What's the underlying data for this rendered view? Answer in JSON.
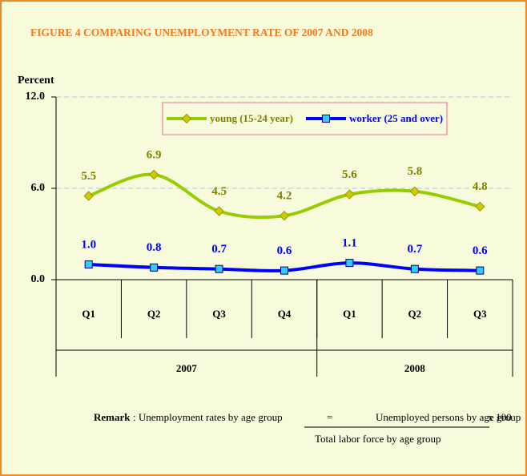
{
  "chart_data": {
    "type": "line",
    "title": "FIGURE 4  COMPARING UNEMPLOYMENT RATE OF 2007 AND 2008",
    "y_label": "Percent",
    "groups": [
      {
        "name": "2007",
        "categories": [
          "Q1",
          "Q2",
          "Q3",
          "Q4"
        ]
      },
      {
        "name": "2008",
        "categories": [
          "Q1",
          "Q2",
          "Q3"
        ]
      }
    ],
    "series": [
      {
        "name": "young (15-24 year)",
        "color": "#99cc00",
        "marker_color": "#cccc00",
        "label_color": "#808000",
        "marker": "diamond",
        "values": [
          5.5,
          6.9,
          4.5,
          4.2,
          5.6,
          5.8,
          4.8
        ],
        "value_labels": [
          "5.5",
          "6.9",
          "4.5",
          "4.2",
          "5.6",
          "5.8",
          "4.8"
        ]
      },
      {
        "name": "worker (25 and over)",
        "color": "#0000ff",
        "marker_color": "#33ccff",
        "label_color": "#0000ff",
        "marker": "square",
        "values": [
          1.0,
          0.8,
          0.7,
          0.6,
          1.1,
          0.7,
          0.6
        ],
        "value_labels": [
          "1.0",
          "0.8",
          "0.7",
          "0.6",
          "1.1",
          "0.7",
          "0.6"
        ]
      }
    ],
    "ylim": [
      0,
      12
    ],
    "yticks": [
      {
        "value": 0,
        "label": "0.0"
      },
      {
        "value": 6,
        "label": "6.0"
      },
      {
        "value": 12,
        "label": "12.0"
      }
    ],
    "grid": true,
    "legend": "top",
    "remark": {
      "label": "Remark",
      "text": ": Unemployment rates by age group",
      "equals": "=",
      "numerator": "Unemployed persons by age group",
      "multiplier": "x   100",
      "denominator": "Total labor force by age group"
    }
  }
}
